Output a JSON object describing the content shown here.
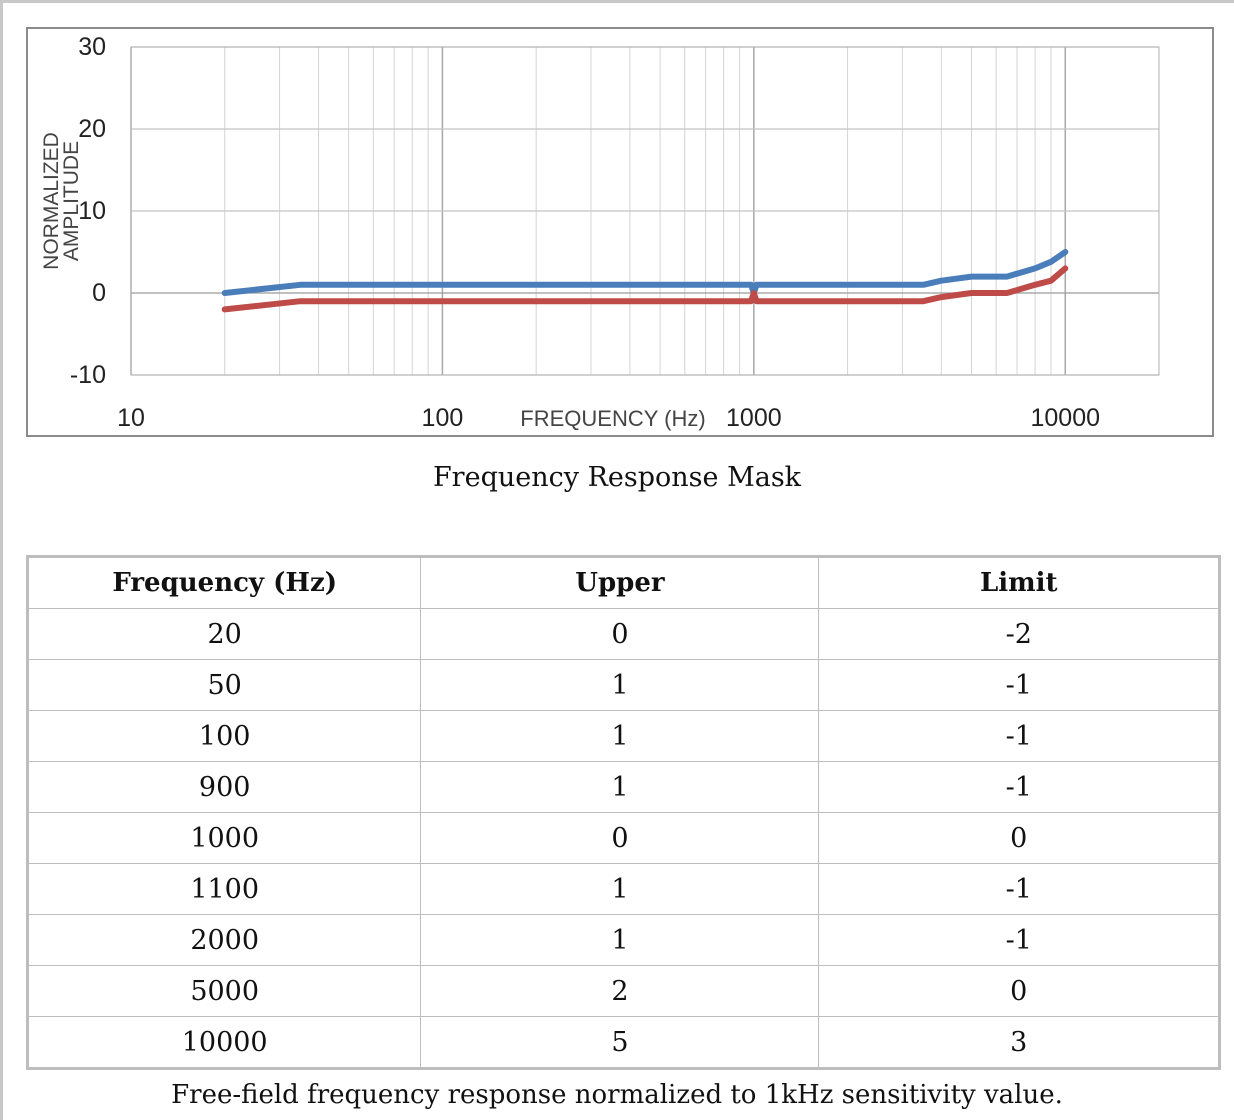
{
  "chart_data": {
    "type": "line",
    "title": "Frequency Response Mask",
    "xlabel": "FREQUENCY (Hz)",
    "ylabel": "NORMALIZED AMPLITUDE",
    "xscale": "log",
    "xlim": [
      10,
      20000
    ],
    "ylim": [
      -10,
      30
    ],
    "x_ticks": [
      "10",
      "100",
      "1000",
      "10000"
    ],
    "y_ticks": [
      "30",
      "20",
      "10",
      "0",
      "-10"
    ],
    "grid": true,
    "legend": "none",
    "x": [
      20,
      35,
      100,
      900,
      980,
      1000,
      1020,
      1100,
      2000,
      3500,
      4000,
      5000,
      6500,
      8000,
      9000,
      10000
    ],
    "series": [
      {
        "color": "#4a7ebb",
        "values": [
          0,
          1,
          1,
          1,
          1,
          0,
          1,
          1,
          1,
          1,
          1.5,
          2,
          2,
          3,
          3.8,
          5
        ]
      },
      {
        "color": "#be4b48",
        "values": [
          -2,
          -1,
          -1,
          -1,
          -1,
          0,
          -1,
          -1,
          -1,
          -1,
          -0.5,
          0,
          0,
          1,
          1.5,
          3
        ]
      }
    ]
  },
  "captions": {
    "chart": "Frequency Response Mask",
    "table": "Free-field frequency response normalized to 1kHz sensitivity value."
  },
  "table": {
    "headers": [
      "Frequency (Hz)",
      "Upper",
      "Limit"
    ],
    "rows": [
      [
        "20",
        "0",
        "-2"
      ],
      [
        "50",
        "1",
        "-1"
      ],
      [
        "100",
        "1",
        "-1"
      ],
      [
        "900",
        "1",
        "-1"
      ],
      [
        "1000",
        "0",
        "0"
      ],
      [
        "1100",
        "1",
        "-1"
      ],
      [
        "2000",
        "1",
        "-1"
      ],
      [
        "5000",
        "2",
        "0"
      ],
      [
        "10000",
        "5",
        "3"
      ]
    ]
  }
}
